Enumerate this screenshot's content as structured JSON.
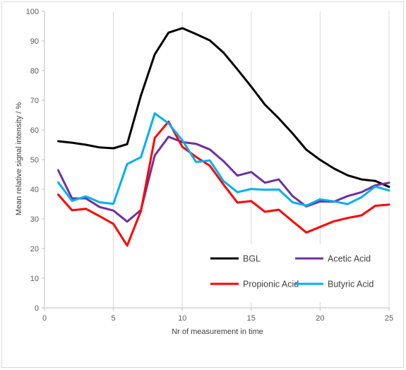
{
  "chart_data": {
    "type": "line",
    "title": "",
    "xlabel": "Nr of measurement in time",
    "ylabel": "Mean relative signal intensity / %",
    "xlim": [
      0,
      25
    ],
    "ylim": [
      0,
      100
    ],
    "x_ticks": [
      0,
      5,
      10,
      15,
      20,
      25
    ],
    "y_ticks": [
      0,
      10,
      20,
      30,
      40,
      50,
      60,
      70,
      80,
      90,
      100
    ],
    "grid": "vertical",
    "legend_position": "bottom-right",
    "x": [
      1,
      2,
      3,
      4,
      5,
      6,
      7,
      8,
      9,
      10,
      11,
      12,
      13,
      14,
      15,
      16,
      17,
      18,
      19,
      20,
      21,
      22,
      23,
      24,
      25
    ],
    "series": [
      {
        "name": "BGL",
        "color": "#000000",
        "values": [
          56.2,
          55.7,
          55.0,
          54.1,
          53.8,
          55.2,
          71.6,
          85.5,
          92.8,
          94.3,
          92.3,
          90.2,
          86.0,
          80.4,
          74.6,
          68.5,
          63.9,
          58.8,
          53.3,
          49.9,
          47.0,
          44.7,
          43.3,
          42.8,
          40.8
        ]
      },
      {
        "name": "Acetic Acid",
        "color": "#7030a0",
        "values": [
          46.4,
          36.9,
          36.9,
          34.0,
          32.8,
          29.1,
          33.0,
          51.4,
          57.7,
          55.9,
          55.3,
          53.4,
          49.4,
          44.6,
          45.8,
          42.2,
          43.3,
          37.7,
          34.2,
          35.9,
          35.8,
          37.7,
          39.0,
          41.3,
          42.2
        ]
      },
      {
        "name": "Propionic Acid",
        "color": "#ff0000",
        "values": [
          38.2,
          32.9,
          33.4,
          30.9,
          28.3,
          21.0,
          32.7,
          57.3,
          62.8,
          54.3,
          50.9,
          47.9,
          41.5,
          35.5,
          36.0,
          32.4,
          33.1,
          29.2,
          25.4,
          27.3,
          29.2,
          30.3,
          31.2,
          34.4,
          34.8
        ]
      },
      {
        "name": "Butyric Acid",
        "color": "#00b0f0",
        "values": [
          42.3,
          36.1,
          37.6,
          35.6,
          35.1,
          48.5,
          50.8,
          65.6,
          62.2,
          56.5,
          49.2,
          49.7,
          42.7,
          39.0,
          40.1,
          39.8,
          39.9,
          35.6,
          34.5,
          36.6,
          35.9,
          35.0,
          37.3,
          40.9,
          39.6
        ]
      }
    ]
  }
}
